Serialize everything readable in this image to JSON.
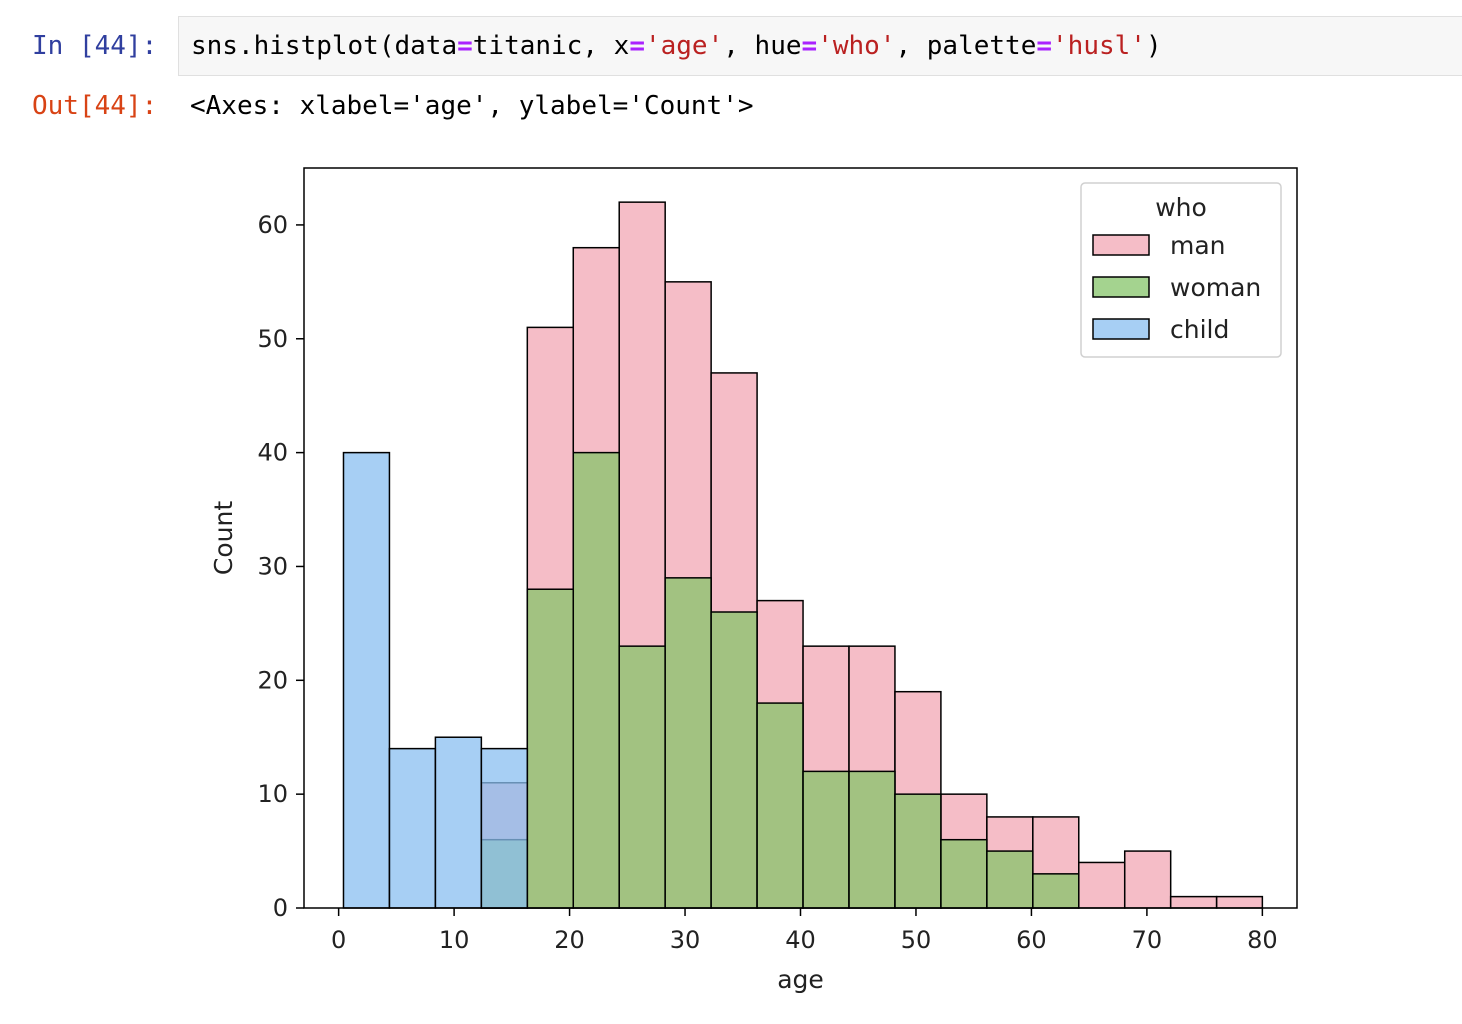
{
  "cell": {
    "in_prompt": "In [44]:",
    "out_prompt": "Out[44]:",
    "code": {
      "func": "sns.histplot(data",
      "op1": "=",
      "arg1": "titanic, x",
      "op2": "=",
      "str1": "'age'",
      "arg2": ", hue",
      "op3": "=",
      "str2": "'who'",
      "arg3": ", palette",
      "op4": "=",
      "str3": "'husl'",
      "close": ")"
    },
    "output": "<Axes: xlabel='age', ylabel='Count'>"
  },
  "chart_data": {
    "type": "bar",
    "subtype": "overlapping histogram",
    "xlabel": "age",
    "ylabel": "Count",
    "xlim": [
      -3,
      83
    ],
    "ylim": [
      0,
      65
    ],
    "x_ticks": [
      0,
      10,
      20,
      30,
      40,
      50,
      60,
      70,
      80
    ],
    "y_ticks": [
      0,
      10,
      20,
      30,
      40,
      50,
      60
    ],
    "bin_edges": [
      0.42,
      4.4,
      8.38,
      12.36,
      16.34,
      20.32,
      24.3,
      28.28,
      32.26,
      36.24,
      40.22,
      44.2,
      48.18,
      52.16,
      56.14,
      60.12,
      64.1,
      68.08,
      72.06,
      76.04,
      80.0
    ],
    "legend": {
      "title": "who",
      "position": "top-right"
    },
    "grid": false,
    "series": [
      {
        "name": "man",
        "color": "#f2a7b4",
        "values": [
          0,
          0,
          0,
          11,
          51,
          58,
          62,
          55,
          47,
          27,
          23,
          23,
          19,
          10,
          8,
          8,
          4,
          5,
          1,
          1
        ]
      },
      {
        "name": "woman",
        "color": "#86c46a",
        "values": [
          0,
          0,
          0,
          6,
          28,
          40,
          23,
          29,
          26,
          18,
          12,
          12,
          10,
          6,
          5,
          3,
          0,
          0,
          0,
          0
        ]
      },
      {
        "name": "child",
        "color": "#89bff0",
        "values": [
          40,
          14,
          15,
          14,
          0,
          0,
          0,
          0,
          0,
          0,
          0,
          0,
          0,
          0,
          0,
          0,
          0,
          0,
          0,
          0
        ]
      }
    ]
  }
}
